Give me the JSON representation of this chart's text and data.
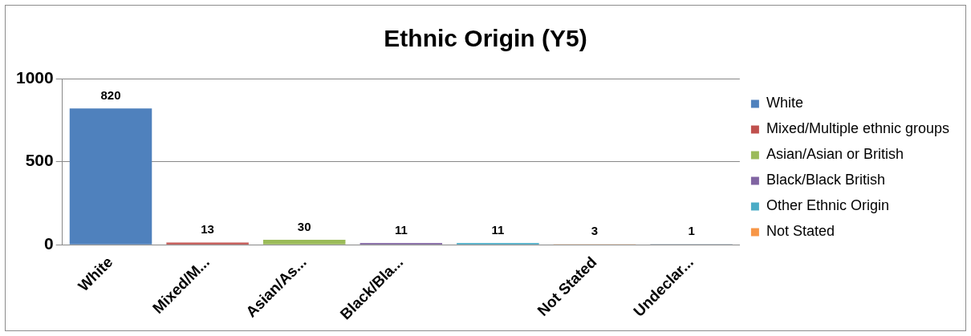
{
  "chart_data": {
    "type": "bar",
    "title": "Ethnic Origin (Y5)",
    "categories": [
      "White",
      "Mixed/M...",
      "Asian/As...",
      "Black/Bla...",
      null,
      "Not Stated",
      "Undeclar..."
    ],
    "series": [
      {
        "name": "White",
        "color": "#4f81bd",
        "values": [
          820,
          null,
          null,
          null,
          null,
          null,
          null
        ]
      },
      {
        "name": "Mixed/Multiple ethnic groups",
        "color": "#c0504d",
        "values": [
          null,
          13,
          null,
          null,
          null,
          null,
          null
        ]
      },
      {
        "name": "Asian/Asian or British",
        "color": "#9bbb59",
        "values": [
          null,
          null,
          30,
          null,
          null,
          null,
          null
        ]
      },
      {
        "name": "Black/Black British",
        "color": "#8064a2",
        "values": [
          null,
          null,
          null,
          11,
          null,
          null,
          null
        ]
      },
      {
        "name": "Other Ethnic Origin",
        "color": "#4bacc6",
        "values": [
          null,
          null,
          null,
          null,
          11,
          null,
          null
        ]
      },
      {
        "name": "Not Stated",
        "color": "#f79646",
        "values": [
          null,
          null,
          null,
          null,
          null,
          3,
          null
        ]
      },
      {
        "color": "#2c4d75",
        "values": [
          null,
          null,
          null,
          null,
          null,
          null,
          1
        ]
      }
    ],
    "ylim": [
      0,
      1000
    ],
    "yticks": [
      0,
      500,
      1000
    ],
    "grid": "y",
    "legend": "right",
    "data_labels": true
  }
}
